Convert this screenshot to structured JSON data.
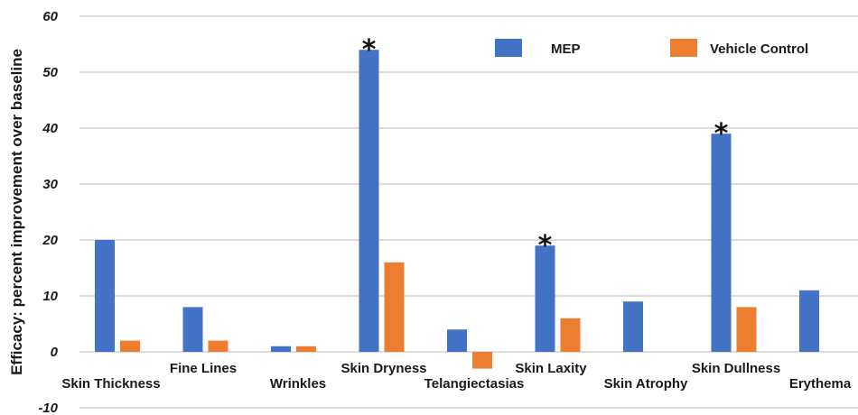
{
  "chart_data": {
    "type": "bar",
    "ylabel": "Efficacy: percent improvement over baseline",
    "ylim": [
      -10,
      60
    ],
    "yticks": [
      -10,
      0,
      10,
      20,
      30,
      40,
      50,
      60
    ],
    "grid": true,
    "legend_position": "top-right",
    "categories": [
      "Skin Thickness",
      "Fine Lines",
      "Wrinkles",
      "Skin Dryness",
      "Telangiectasias",
      "Skin Laxity",
      "Skin Atrophy",
      "Skin Dullness",
      "Erythema"
    ],
    "series": [
      {
        "name": "MEP",
        "color": "#4472C4",
        "values": [
          20,
          8,
          1,
          54,
          4,
          19,
          9,
          39,
          11
        ]
      },
      {
        "name": "Vehicle Control",
        "color": "#ED7D31",
        "values": [
          2,
          2,
          1,
          16,
          -3,
          6,
          null,
          8,
          null
        ]
      }
    ],
    "annotations": [
      {
        "category": "Skin Dryness",
        "text": "*"
      },
      {
        "category": "Skin Laxity",
        "text": "*"
      },
      {
        "category": "Skin Dullness",
        "text": "*"
      }
    ]
  }
}
